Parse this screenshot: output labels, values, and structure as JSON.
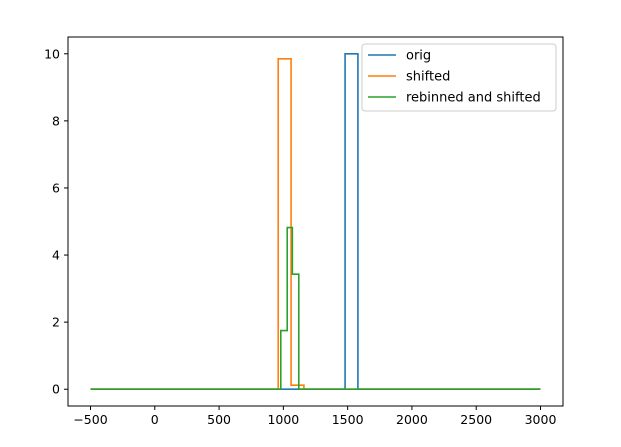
{
  "chart_data": {
    "type": "line",
    "drawstyle": "steps",
    "title": "",
    "xlabel": "",
    "ylabel": "",
    "xlim": [
      -675,
      3175
    ],
    "ylim": [
      -0.5,
      10.5
    ],
    "grid": false,
    "xticks": [
      -500,
      0,
      500,
      1000,
      1500,
      2000,
      2500,
      3000
    ],
    "xtick_labels": [
      "−500",
      "0",
      "500",
      "1000",
      "1500",
      "2000",
      "2500",
      "3000"
    ],
    "yticks": [
      0,
      2,
      4,
      6,
      8,
      10
    ],
    "ytick_labels": [
      "0",
      "2",
      "4",
      "6",
      "8",
      "10"
    ],
    "legend": {
      "position": "top-right"
    },
    "series": [
      {
        "name": "orig",
        "color": "#1f77b4",
        "points": [
          [
            -500,
            0
          ],
          [
            1480,
            0
          ],
          [
            1480,
            10
          ],
          [
            1580,
            10
          ],
          [
            1580,
            0
          ],
          [
            3000,
            0
          ]
        ]
      },
      {
        "name": "shifted",
        "color": "#ff7f0e",
        "points": [
          [
            -500,
            0
          ],
          [
            960,
            0
          ],
          [
            960,
            9.85
          ],
          [
            1060,
            9.85
          ],
          [
            1060,
            0.12
          ],
          [
            1160,
            0.12
          ],
          [
            1160,
            0
          ],
          [
            3000,
            0
          ]
        ]
      },
      {
        "name": "rebinned and shifted",
        "color": "#2ca02c",
        "points": [
          [
            -500,
            0
          ],
          [
            980,
            0
          ],
          [
            980,
            1.75
          ],
          [
            1030,
            1.75
          ],
          [
            1030,
            4.82
          ],
          [
            1070,
            4.82
          ],
          [
            1070,
            3.43
          ],
          [
            1120,
            3.43
          ],
          [
            1120,
            0
          ],
          [
            3000,
            0
          ]
        ]
      }
    ]
  }
}
